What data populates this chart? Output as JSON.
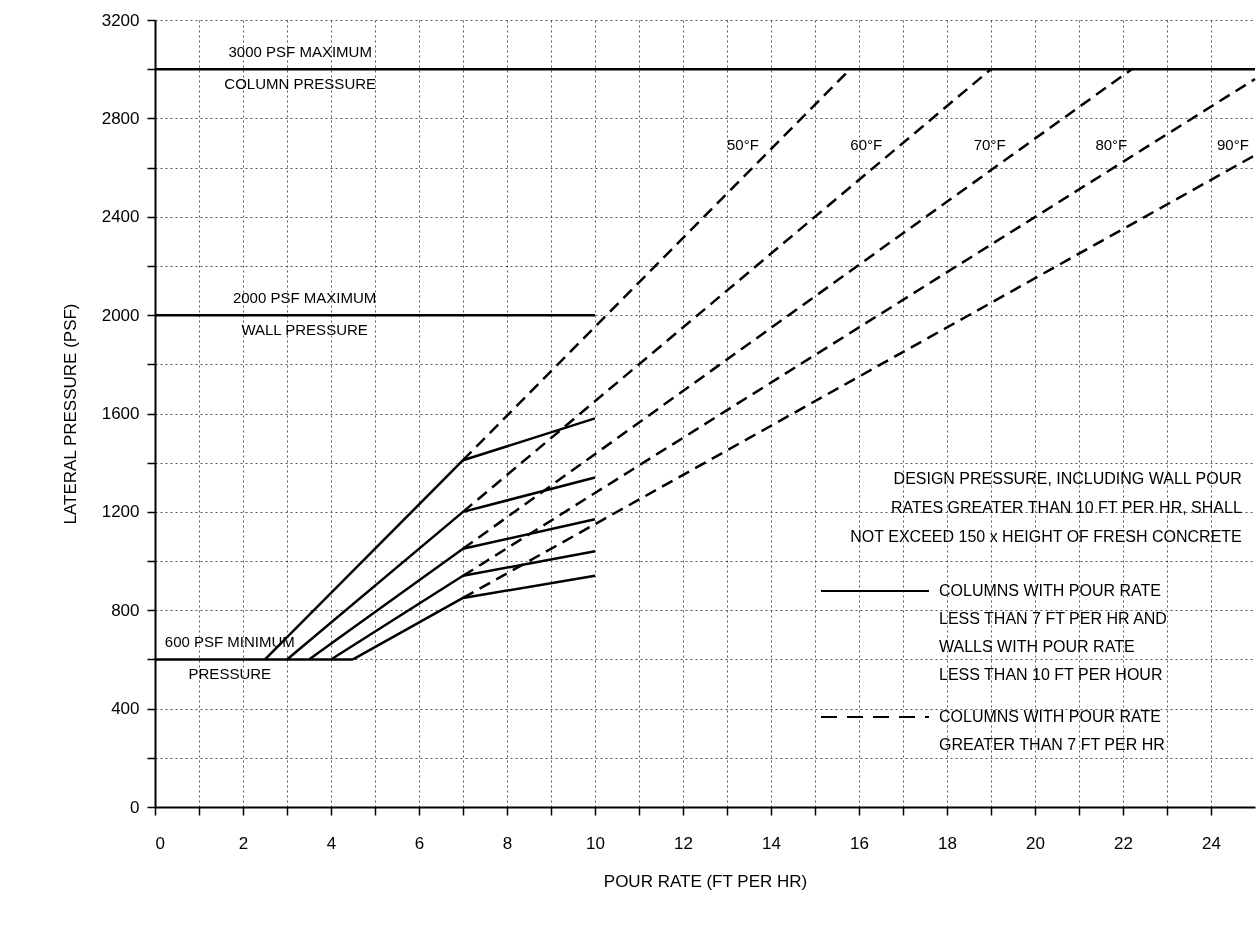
{
  "chart_data": {
    "type": "line",
    "xlabel": "POUR RATE (FT PER HR)",
    "ylabel": "LATERAL PRESSURE (PSF)",
    "xlim": [
      0,
      25
    ],
    "ylim": [
      0,
      3200
    ],
    "xticks": [
      0,
      {
        "value": 1,
        "label": null
      },
      2,
      {
        "value": 3,
        "label": null
      },
      4,
      {
        "value": 5,
        "label": null
      },
      6,
      {
        "value": 7,
        "label": null
      },
      8,
      {
        "value": 9,
        "label": null
      },
      10,
      {
        "value": 11,
        "label": null
      },
      12,
      {
        "value": 13,
        "label": null
      },
      14,
      {
        "value": 15,
        "label": null
      },
      16,
      {
        "value": 17,
        "label": null
      },
      18,
      {
        "value": 19,
        "label": null
      },
      20,
      {
        "value": 21,
        "label": null
      },
      22,
      {
        "value": 23,
        "label": null
      },
      24
    ],
    "yticks": [
      0,
      {
        "value": 200,
        "label": null
      },
      400,
      {
        "value": 600,
        "label": null
      },
      800,
      {
        "value": 1000,
        "label": null
      },
      1200,
      {
        "value": 1400,
        "label": null
      },
      1600,
      {
        "value": 1800,
        "label": null
      },
      2000,
      {
        "value": 2200,
        "label": null
      },
      2400,
      {
        "value": 2600,
        "label": null
      },
      2800,
      {
        "value": 3000,
        "label": null
      },
      3200
    ],
    "grid": true,
    "series": [
      {
        "type": "line",
        "line_style": "solid",
        "color": "#000000",
        "x": [
          0,
          25
        ],
        "values": [
          3000,
          3000
        ]
      },
      {
        "type": "line",
        "line_style": "solid",
        "color": "#000000",
        "x": [
          0,
          10
        ],
        "values": [
          2000,
          2000
        ]
      },
      {
        "type": "line",
        "line_style": "solid",
        "color": "#000000",
        "x": [
          0,
          4.5
        ],
        "values": [
          600,
          600
        ]
      },
      {
        "type": "line",
        "line_style": "solid",
        "color": "#000000",
        "x": [
          2.5,
          7,
          10
        ],
        "values": [
          600,
          1410,
          1580
        ]
      },
      {
        "type": "line",
        "line_style": "solid",
        "color": "#000000",
        "x": [
          3,
          7,
          10
        ],
        "values": [
          600,
          1200,
          1340
        ]
      },
      {
        "type": "line",
        "line_style": "solid",
        "color": "#000000",
        "x": [
          3.5,
          7,
          10
        ],
        "values": [
          600,
          1050,
          1170
        ]
      },
      {
        "type": "line",
        "line_style": "solid",
        "color": "#000000",
        "x": [
          4,
          7,
          10
        ],
        "values": [
          600,
          940,
          1040
        ]
      },
      {
        "type": "line",
        "line_style": "solid",
        "color": "#000000",
        "x": [
          4.5,
          7,
          10
        ],
        "values": [
          600,
          850,
          940
        ]
      },
      {
        "name": "50°F",
        "type": "line",
        "line_style": "dashed",
        "color": "#000000",
        "x": [
          7,
          15.8
        ],
        "values": [
          1410,
          3000
        ]
      },
      {
        "name": "60°F",
        "type": "line",
        "line_style": "dashed",
        "color": "#000000",
        "x": [
          7,
          19
        ],
        "values": [
          1200,
          3000
        ]
      },
      {
        "name": "70°F",
        "type": "line",
        "line_style": "dashed",
        "color": "#000000",
        "x": [
          7,
          22.2
        ],
        "values": [
          1050,
          3000
        ]
      },
      {
        "name": "80°F",
        "type": "line",
        "line_style": "dashed",
        "color": "#000000",
        "x": [
          7,
          25
        ],
        "values": [
          940,
          2960
        ]
      },
      {
        "name": "90°F",
        "type": "line",
        "line_style": "dashed",
        "color": "#000000",
        "x": [
          7,
          25
        ],
        "values": [
          850,
          2650
        ]
      }
    ],
    "annotations": [
      {
        "text": "3000 PSF MAXIMUM\nCOLUMN PRESSURE",
        "x": 3.3,
        "y": 3000
      },
      {
        "text": "2000 PSF MAXIMUM\nWALL PRESSURE",
        "x": 3.4,
        "y": 2000
      },
      {
        "text": "600 PSF MINIMUM\nPRESSURE",
        "x": 1.7,
        "y": 600
      },
      "DESIGN PRESSURE, INCLUDING WALL POUR\nRATES GREATER THAN 10 FT PER HR, SHALL\nNOT EXCEED 150 x HEIGHT OF FRESH CONCRETE",
      "COLUMNS WITH POUR RATE\nLESS THAN 7 FT PER HR AND\nWALLS WITH POUR RATE\nLESS THAN 10 FT PER HOUR",
      "COLUMNS WITH POUR RATE\nGREATER THAN 7 FT PER HR"
    ]
  }
}
